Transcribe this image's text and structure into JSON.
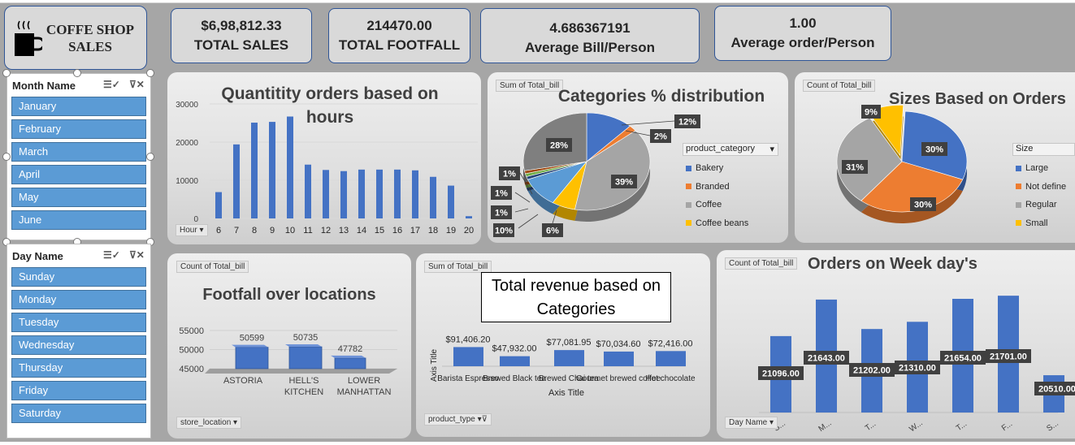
{
  "logo": {
    "line1": "COFFE SHOP",
    "line2": "SALES",
    "icon": "coffee-cup-icon"
  },
  "kpis": [
    {
      "value": "$6,98,812.33",
      "label": "TOTAL SALES"
    },
    {
      "value": "214470.00",
      "label": "TOTAL FOOTFALL"
    },
    {
      "value": "4.686367191",
      "label": "Average Bill/Person"
    },
    {
      "value": "1.00",
      "label": "Average order/Person"
    }
  ],
  "month_slicer": {
    "title": "Month Name",
    "items": [
      "January",
      "February",
      "March",
      "April",
      "May",
      "June"
    ]
  },
  "day_slicer": {
    "title": "Day Name",
    "items": [
      "Sunday",
      "Monday",
      "Tuesday",
      "Wednesday",
      "Thursday",
      "Friday",
      "Saturday"
    ]
  },
  "hours_chart": {
    "title": "Quantitity orders based on hours",
    "field_button": "Hour"
  },
  "categories_chart": {
    "title": "Categories % distribution",
    "tag": "Sum of Total_bill",
    "legend_title": "product_category"
  },
  "sizes_chart": {
    "title": "Sizes Based on Orders",
    "tag": "Count of Total_bill",
    "legend_title": "Size"
  },
  "footfall_chart": {
    "title": "Footfall over locations",
    "tag": "Count of Total_bill",
    "field_button": "store_location"
  },
  "revenue_chart": {
    "title": "Total revenue based on Categories",
    "tag": "Sum of Total_bill",
    "field_button": "product_type",
    "x_axis_title": "Axis Title",
    "y_axis_title": "Axis Title"
  },
  "weekday_chart": {
    "title": "Orders on Week day's",
    "tag": "Count of Total_bill",
    "field_button": "Day Name"
  },
  "colors": {
    "blue": "#4472c4",
    "orange": "#ed7d31",
    "gray": "#a5a5a5",
    "yellow": "#ffc000",
    "slicer": "#5b9bd5"
  },
  "chart_data": [
    {
      "type": "bar",
      "id": "hours",
      "title": "Quantitity orders based on hours",
      "categories": [
        "6",
        "7",
        "8",
        "9",
        "10",
        "11",
        "12",
        "13",
        "14",
        "15",
        "16",
        "17",
        "18",
        "19",
        "20"
      ],
      "values": [
        6900,
        19400,
        25100,
        25300,
        26700,
        14100,
        12700,
        12400,
        12800,
        12800,
        12800,
        12600,
        10900,
        8600,
        600
      ],
      "ylim": [
        0,
        30000
      ],
      "yticks": [
        "30000",
        "20000",
        "10000",
        "0"
      ]
    },
    {
      "type": "pie",
      "id": "categories",
      "title": "Categories % distribution",
      "series": [
        {
          "name": "Bakery",
          "value": 12
        },
        {
          "name": "Branded",
          "value": 2
        },
        {
          "name": "Coffee",
          "value": 39
        },
        {
          "name": "Coffee beans",
          "value": 6
        },
        {
          "name": "",
          "value": 10
        },
        {
          "name": "",
          "value": 1
        },
        {
          "name": "",
          "value": 1
        },
        {
          "name": "",
          "value": 1
        },
        {
          "name": "",
          "value": 28
        }
      ],
      "labels": [
        "12%",
        "2%",
        "39%",
        "6%",
        "10%",
        "1%",
        "1%",
        "1%",
        "28%"
      ]
    },
    {
      "type": "pie",
      "id": "sizes",
      "title": "Sizes Based on Orders",
      "series": [
        {
          "name": "Large",
          "value": 30
        },
        {
          "name": "Not defined",
          "value": 30
        },
        {
          "name": "Regular",
          "value": 31
        },
        {
          "name": "Small",
          "value": 9
        }
      ],
      "legend": [
        "Large",
        "Not define",
        "Regular",
        "Small"
      ],
      "labels": [
        "30%",
        "30%",
        "31%",
        "9%"
      ]
    },
    {
      "type": "bar",
      "id": "footfall",
      "title": "Footfall over locations",
      "categories": [
        "ASTORIA",
        "HELL'S KITCHEN",
        "LOWER MANHATTAN"
      ],
      "category_lines": [
        [
          "ASTORIA"
        ],
        [
          "HELL'S",
          "KITCHEN"
        ],
        [
          "LOWER",
          "MANHATTAN"
        ]
      ],
      "values": [
        50599,
        50735,
        47782
      ],
      "labels": [
        "50599",
        "50735",
        "47782"
      ],
      "ylim": [
        45000,
        55000
      ],
      "yticks": [
        "55000",
        "50000",
        "45000"
      ]
    },
    {
      "type": "bar",
      "id": "revenue",
      "title": "Total revenue based on Categories",
      "categories": [
        "Barista Espresso",
        "Brewed Black tea",
        "Brewed Chai tea",
        "Gourmet brewed coffee",
        "Hot chocolate"
      ],
      "values": [
        91406.2,
        47932.0,
        77081.95,
        70034.6,
        72416.0
      ],
      "labels": [
        "$91,406.20",
        "$47,932.00",
        "$77,081.95",
        "$70,034.60",
        "$72,416.00"
      ],
      "ylim": [
        0,
        200000
      ]
    },
    {
      "type": "bar",
      "id": "weekday",
      "title": "Orders on Week day's",
      "categories": [
        "S...",
        "M...",
        "T...",
        "W...",
        "T...",
        "F...",
        "S..."
      ],
      "values": [
        21096,
        21643,
        21202,
        21310,
        21654,
        21701,
        20510
      ],
      "labels": [
        "21096.00",
        "21643.00",
        "21202.00",
        "21310.00",
        "21654.00",
        "21701.00",
        "20510.00"
      ],
      "ylim": [
        20000,
        21800
      ]
    }
  ]
}
